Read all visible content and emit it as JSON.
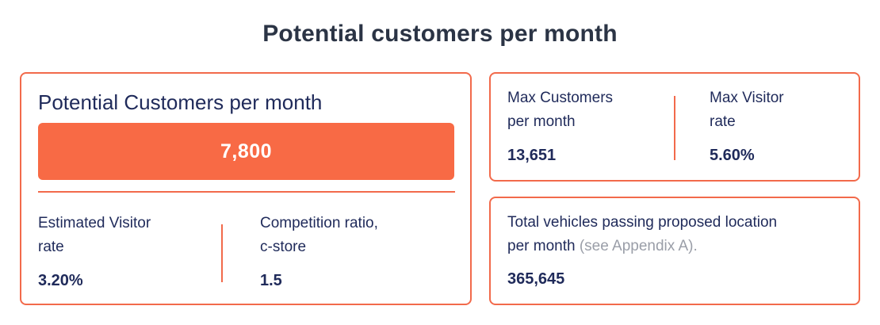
{
  "page": {
    "title": "Potential customers per month"
  },
  "left_card": {
    "title": "Potential Customers per month",
    "highlight_value": "7,800",
    "metrics": [
      {
        "label_line1": "Estimated Visitor",
        "label_line2": "rate",
        "value": "3.20%"
      },
      {
        "label_line1": "Competition ratio,",
        "label_line2": "c-store",
        "value": "1.5"
      }
    ]
  },
  "top_right_card": {
    "metrics": [
      {
        "label_line1": "Max Customers",
        "label_line2": "per month",
        "value": "13,651"
      },
      {
        "label_line1": "Max Visitor",
        "label_line2": "rate",
        "value": "5.60%"
      }
    ]
  },
  "bottom_right_card": {
    "label_line1": "Total vehicles passing proposed location",
    "label_line2": "per month",
    "label_note": "(see Appendix A).",
    "value": "365,645"
  },
  "colors": {
    "accent": "#f86a45",
    "border": "#f26a4b",
    "text": "#1f2a5a",
    "muted": "#9a9ea8"
  }
}
